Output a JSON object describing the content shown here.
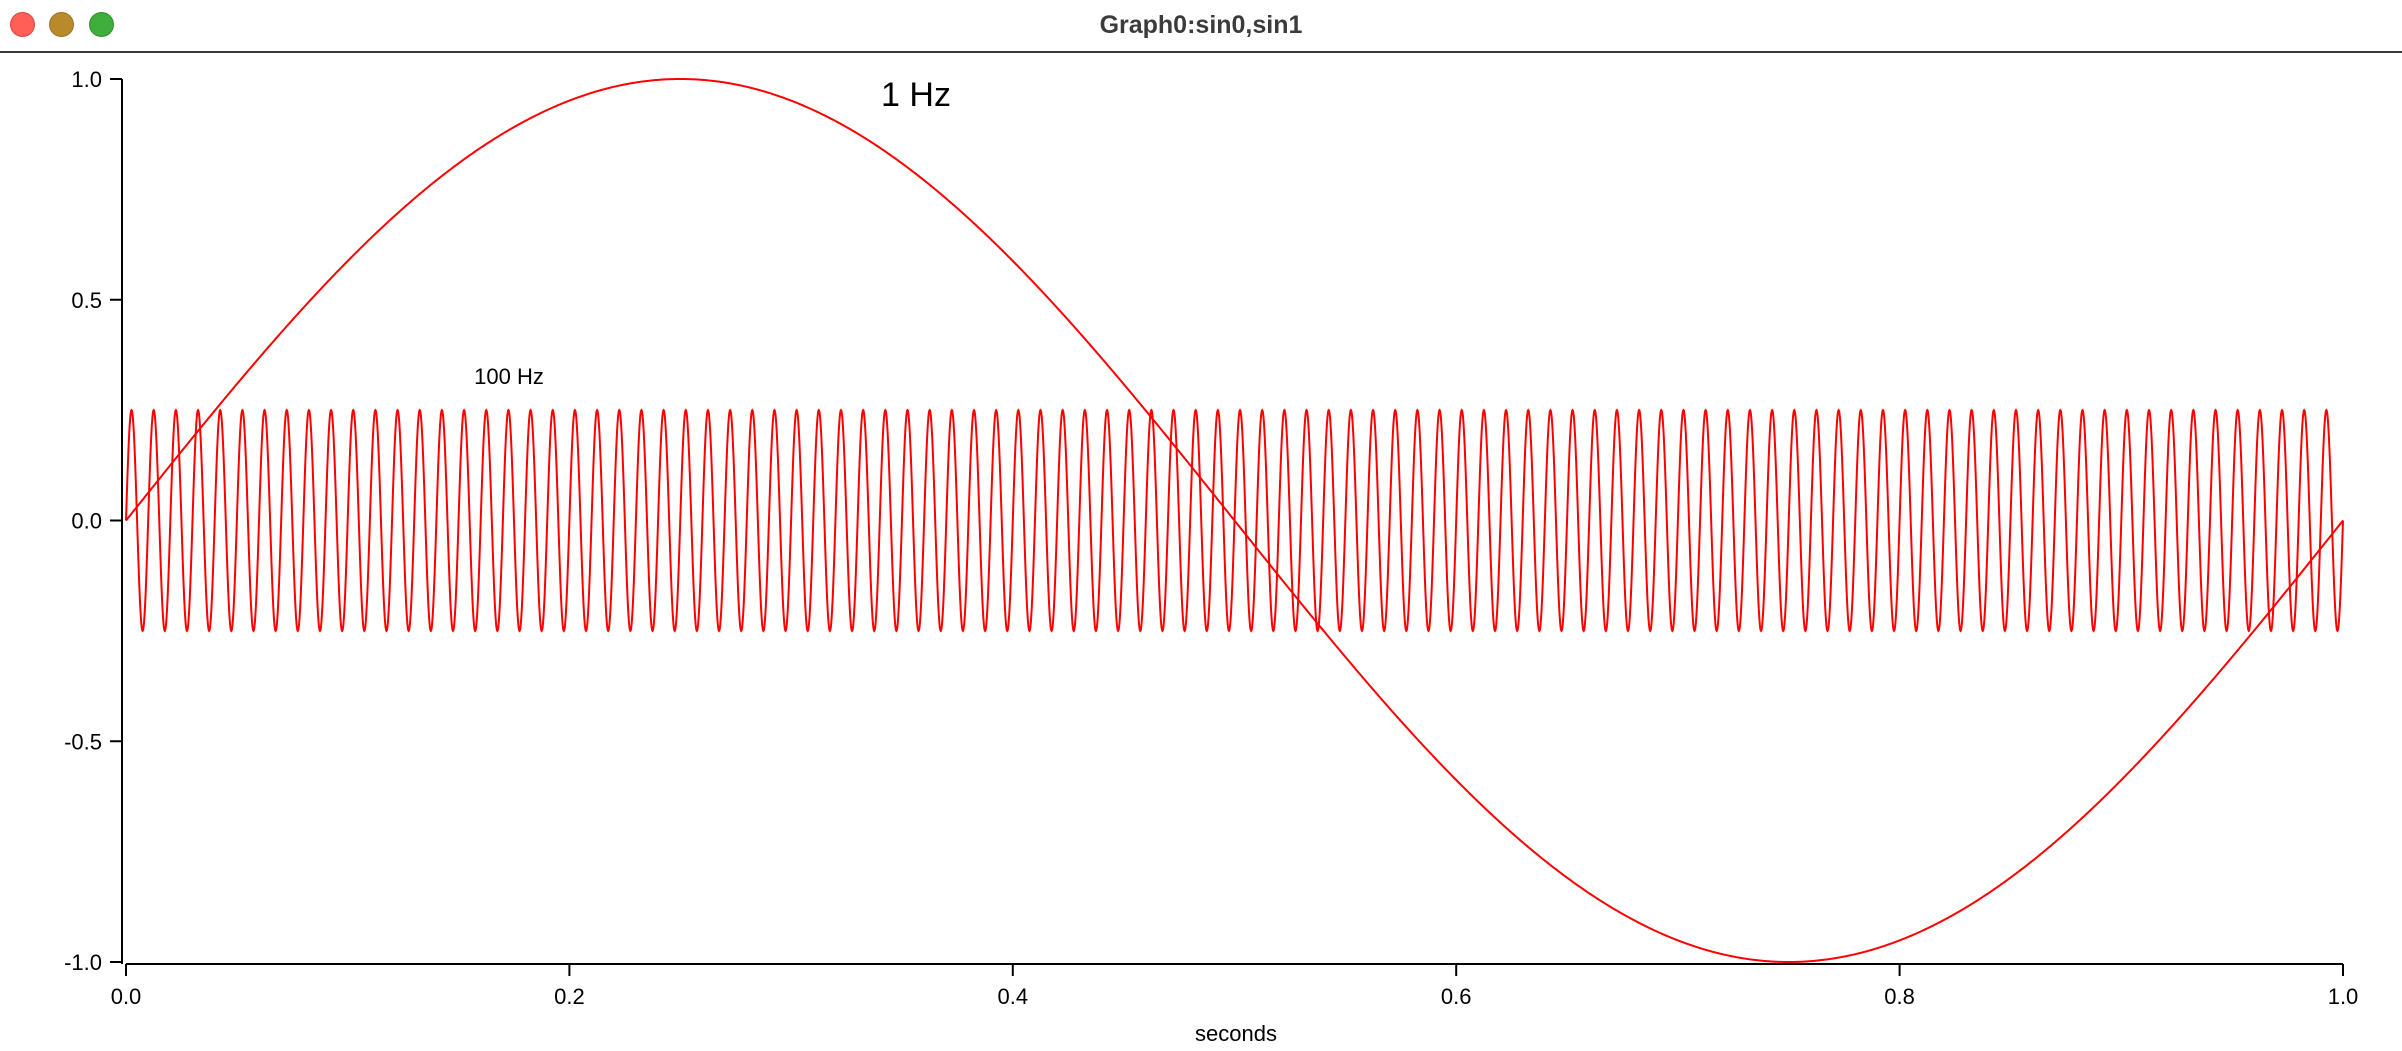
{
  "window": {
    "title": "Graph0:sin0,sin1"
  },
  "chart_data": {
    "type": "line",
    "xlabel": "seconds",
    "ylabel": "",
    "xlim": [
      0,
      1
    ],
    "ylim": [
      -1,
      1
    ],
    "x_ticks": [
      "0.0",
      "0.2",
      "0.4",
      "0.6",
      "0.8",
      "1.0"
    ],
    "y_ticks": [
      "1.0",
      "0.5",
      "0.0",
      "-0.5",
      "-1.0"
    ],
    "grid": false,
    "line_color": "#ff0000",
    "series": [
      {
        "function": "sin",
        "frequency_hz": 1,
        "amplitude": 1,
        "x_start": 0,
        "x_end": 1
      },
      {
        "function": "sin",
        "frequency_hz": 100,
        "amplitude": 0.25,
        "x_start": 0,
        "x_end": 1
      }
    ],
    "annotations": [
      "1 Hz",
      "100 Hz"
    ]
  }
}
